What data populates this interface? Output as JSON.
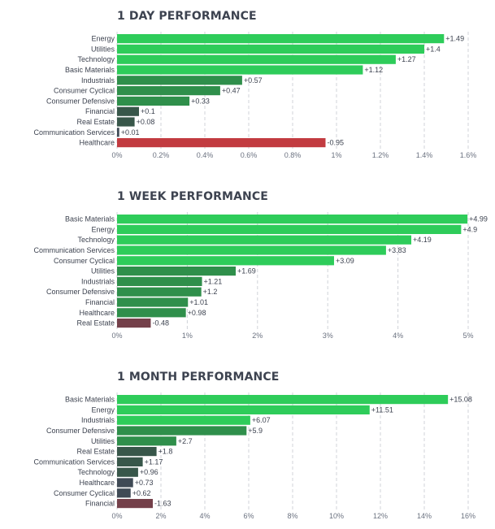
{
  "chart_data": [
    {
      "type": "bar",
      "orientation": "horizontal",
      "title": "1 DAY PERFORMANCE",
      "categories": [
        "Energy",
        "Utilities",
        "Technology",
        "Basic Materials",
        "Industrials",
        "Consumer Cyclical",
        "Consumer Defensive",
        "Financial",
        "Real Estate",
        "Communication Services",
        "Healthcare"
      ],
      "values": [
        1.49,
        1.4,
        1.27,
        1.12,
        0.57,
        0.47,
        0.33,
        0.1,
        0.08,
        0.01,
        -0.95
      ],
      "value_labels": [
        "+1.49",
        "+1.4",
        "+1.27",
        "+1.12",
        "+0.57",
        "+0.47",
        "+0.33",
        "+0.1",
        "+0.08",
        "+0.01",
        "-0.95"
      ],
      "xlim": [
        0,
        1.6
      ],
      "ticks": [
        0,
        0.2,
        0.4,
        0.6,
        0.8,
        1,
        1.2,
        1.4,
        1.6
      ],
      "tick_labels": [
        "0%",
        "0.2%",
        "0.4%",
        "0.6%",
        "0.8%",
        "1%",
        "1.2%",
        "1.4%",
        "1.6%"
      ],
      "xlabel": "",
      "ylabel": "",
      "grid": true
    },
    {
      "type": "bar",
      "orientation": "horizontal",
      "title": "1 WEEK PERFORMANCE",
      "categories": [
        "Basic Materials",
        "Energy",
        "Technology",
        "Communication Services",
        "Consumer Cyclical",
        "Utilities",
        "Industrials",
        "Consumer Defensive",
        "Financial",
        "Healthcare",
        "Real Estate"
      ],
      "values": [
        4.99,
        4.9,
        4.19,
        3.83,
        3.09,
        1.69,
        1.21,
        1.2,
        1.01,
        0.98,
        -0.48
      ],
      "value_labels": [
        "+4.99",
        "+4.9",
        "+4.19",
        "+3.83",
        "+3.09",
        "+1.69",
        "+1.21",
        "+1.2",
        "+1.01",
        "+0.98",
        "-0.48"
      ],
      "xlim": [
        0,
        5
      ],
      "ticks": [
        0,
        1,
        2,
        3,
        4,
        5
      ],
      "tick_labels": [
        "0%",
        "1%",
        "2%",
        "3%",
        "4%",
        "5%"
      ],
      "xlabel": "",
      "ylabel": "",
      "grid": true
    },
    {
      "type": "bar",
      "orientation": "horizontal",
      "title": "1 MONTH PERFORMANCE",
      "categories": [
        "Basic Materials",
        "Energy",
        "Industrials",
        "Consumer Defensive",
        "Utilities",
        "Real Estate",
        "Communication Services",
        "Technology",
        "Healthcare",
        "Consumer Cyclical",
        "Financial"
      ],
      "values": [
        15.08,
        11.51,
        6.07,
        5.9,
        2.7,
        1.8,
        1.17,
        0.96,
        0.73,
        0.62,
        -1.63
      ],
      "value_labels": [
        "+15.08",
        "+11.51",
        "+6.07",
        "+5.9",
        "+2.7",
        "+1.8",
        "+1.17",
        "+0.96",
        "+0.73",
        "+0.62",
        "-1.63"
      ],
      "xlim": [
        0,
        16
      ],
      "ticks": [
        0,
        2,
        4,
        6,
        8,
        10,
        12,
        14,
        16
      ],
      "tick_labels": [
        "0%",
        "2%",
        "4%",
        "6%",
        "8%",
        "10%",
        "12%",
        "14%",
        "16%"
      ],
      "xlabel": "",
      "ylabel": "",
      "grid": true
    }
  ],
  "colors": {
    "positive_strong": "#2ecc5a",
    "positive_mid": "#2f8f4b",
    "positive_weak": "#38574a",
    "neutral": "#3f4a55",
    "negative_strong": "#c23b40",
    "negative_weak": "#74404a",
    "grid": "#d0d3d8",
    "label": "#3d4350",
    "tick": "#6b7280"
  }
}
